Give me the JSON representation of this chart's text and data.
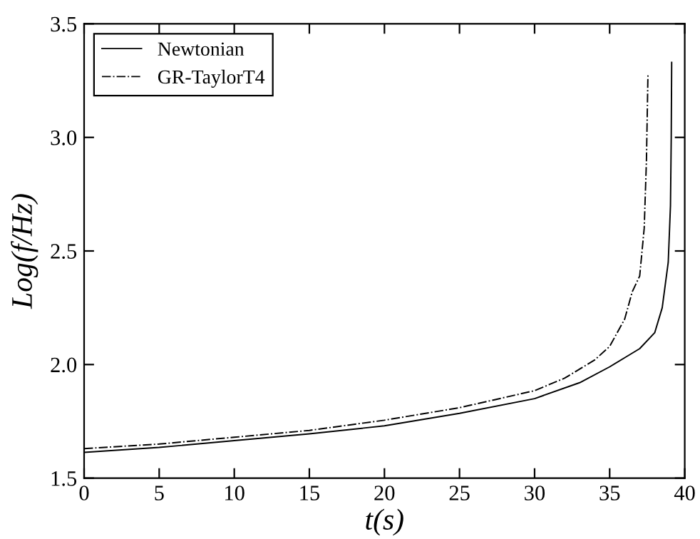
{
  "chart_data": {
    "type": "line",
    "xlabel": "t(s)",
    "ylabel": "Log(f/Hz)",
    "xlim": [
      0,
      40
    ],
    "ylim": [
      1.5,
      3.5
    ],
    "xticks": [
      0,
      5,
      10,
      15,
      20,
      25,
      30,
      35,
      40
    ],
    "yticks": [
      1.5,
      {
        "value": 2,
        "label": "2.0"
      },
      2.5,
      {
        "value": 3,
        "label": "3.0"
      },
      3.5
    ],
    "grid": false,
    "legend": "top left",
    "marker": "none",
    "series": [
      {
        "name": "Newtonian",
        "color": "#000000",
        "line_style": "solid",
        "x": [
          0,
          5,
          10,
          15,
          20,
          25,
          30,
          33,
          35,
          36,
          37,
          38,
          38.5,
          38.9,
          39.05,
          39.1,
          39.13
        ],
        "values": [
          1.613,
          1.635,
          1.665,
          1.695,
          1.73,
          1.785,
          1.85,
          1.92,
          1.99,
          2.03,
          2.07,
          2.14,
          2.25,
          2.45,
          2.7,
          3.0,
          3.33
        ]
      },
      {
        "name": "GR-TaylorT4",
        "color": "#000000",
        "line_style": "dashdot",
        "x": [
          0,
          5,
          10,
          15,
          20,
          25,
          30,
          32,
          34,
          35,
          36,
          36.5,
          37,
          37.3,
          37.45,
          37.55
        ],
        "values": [
          1.63,
          1.65,
          1.68,
          1.71,
          1.755,
          1.81,
          1.885,
          1.94,
          2.02,
          2.08,
          2.2,
          2.32,
          2.39,
          2.6,
          2.9,
          3.28
        ]
      }
    ]
  }
}
